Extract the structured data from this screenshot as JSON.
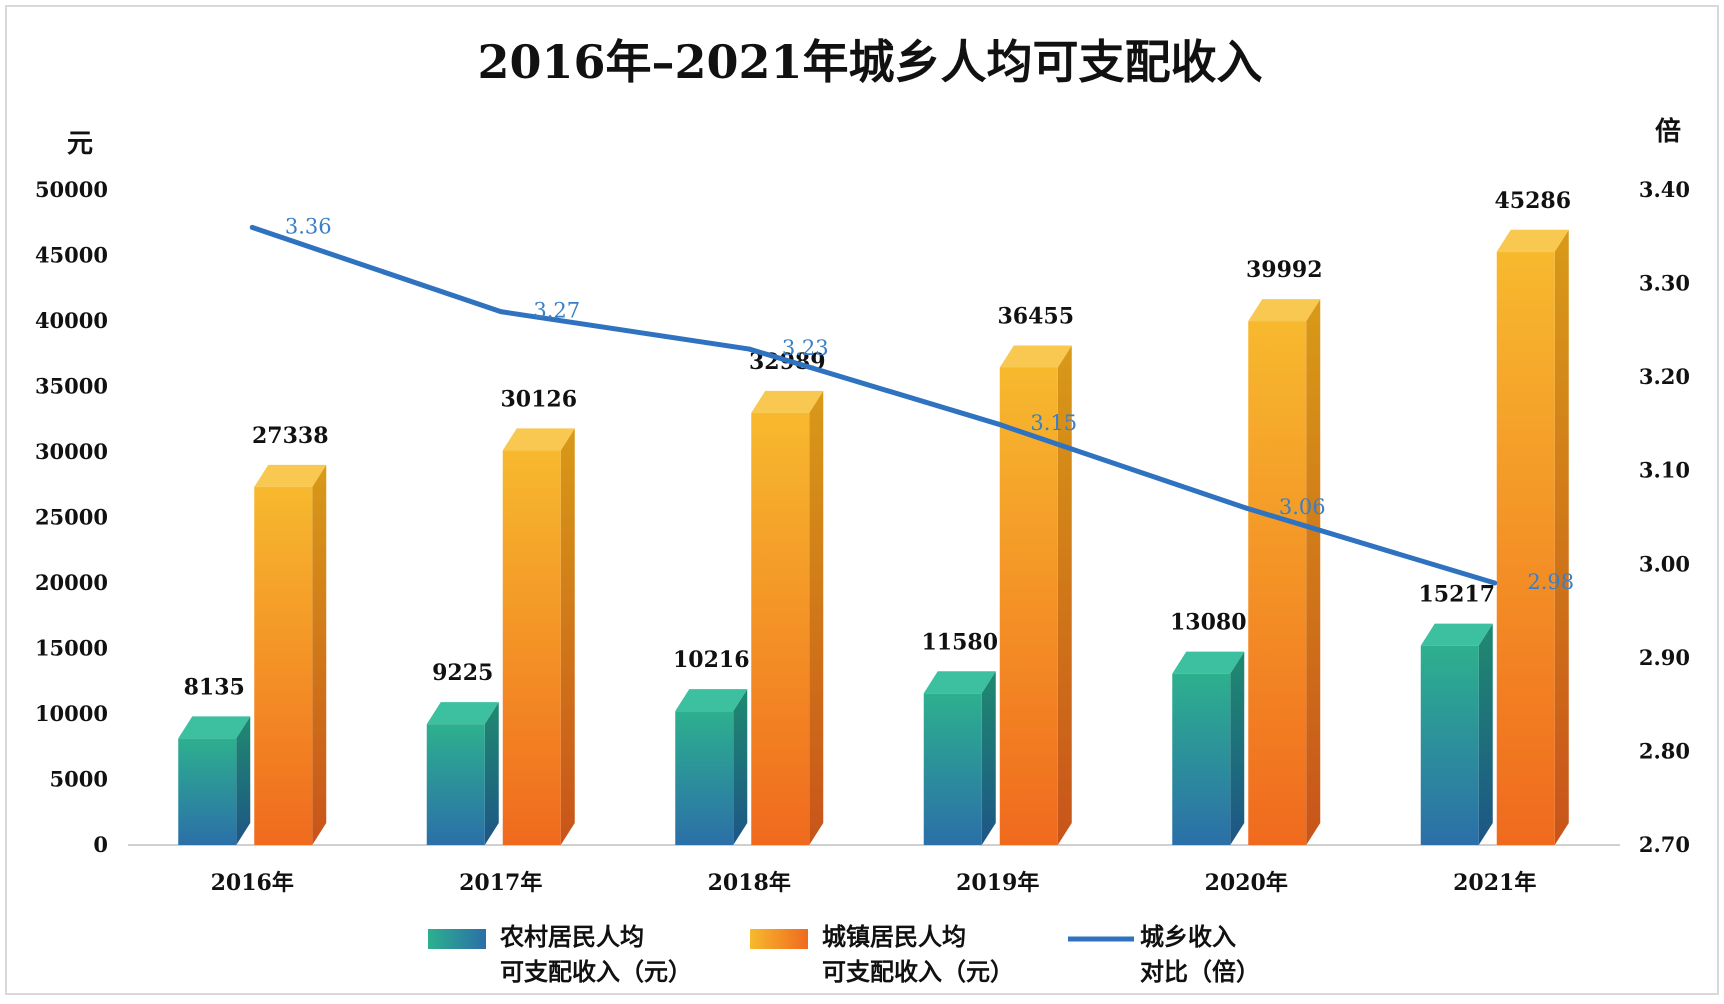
{
  "chart_data": {
    "type": "bar",
    "title": "2016年–2021年城乡人均可支配收入",
    "ylabel": "元",
    "y2label": "倍",
    "ylim": [
      0,
      50000
    ],
    "y2lim": [
      2.7,
      3.4
    ],
    "yticks": [
      "0",
      "5000",
      "10000",
      "15000",
      "20000",
      "25000",
      "30000",
      "35000",
      "40000",
      "45000",
      "50000"
    ],
    "y2ticks": [
      "2.70",
      "2.80",
      "2.90",
      "3.00",
      "3.10",
      "3.20",
      "3.30",
      "3.40"
    ],
    "categories": [
      "2016年",
      "2017年",
      "2018年",
      "2019年",
      "2020年",
      "2021年"
    ],
    "series": [
      {
        "name": "农村居民人均可支配收入（元）",
        "name_lines": [
          "农村居民人均",
          "可支配收入（元）"
        ],
        "type": "bar",
        "axis": "left",
        "values": [
          8135,
          9225,
          10216,
          11580,
          13080,
          15217
        ],
        "labels": [
          "8135",
          "9225",
          "10216",
          "11580",
          "13080",
          "15217"
        ],
        "color": "#2aa58c"
      },
      {
        "name": "城镇居民人均可支配收入（元）",
        "name_lines": [
          "城镇居民人均",
          "可支配收入（元）"
        ],
        "type": "bar",
        "axis": "left",
        "values": [
          27338,
          30126,
          32989,
          36455,
          39992,
          45286
        ],
        "labels": [
          "27338",
          "30126",
          "32989",
          "36455",
          "39992",
          "45286"
        ],
        "color": "#f59a1c"
      },
      {
        "name": "城乡收入对比（倍）",
        "name_lines": [
          "城乡收入",
          "对比（倍）"
        ],
        "type": "line",
        "axis": "right",
        "values": [
          3.36,
          3.27,
          3.23,
          3.15,
          3.06,
          2.98
        ],
        "labels": [
          "3.36",
          "3.27",
          "3.23",
          "3.15",
          "3.06",
          "2.98"
        ],
        "color": "#2f72c0"
      }
    ],
    "legend_position": "bottom",
    "grid": false
  }
}
